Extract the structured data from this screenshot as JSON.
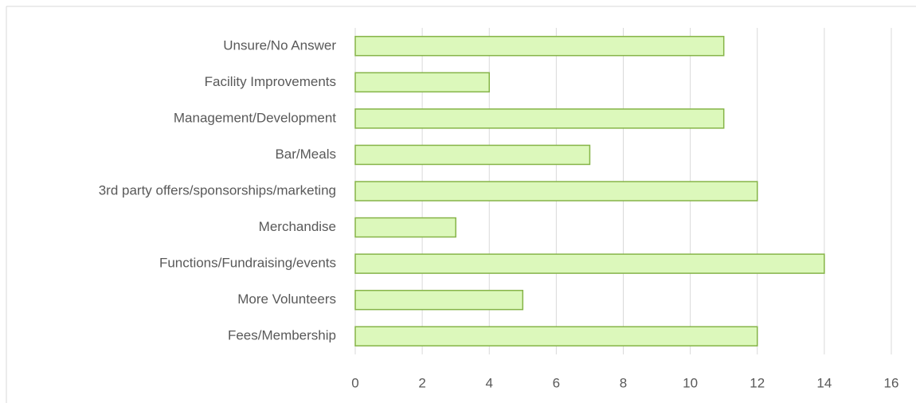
{
  "chart_data": {
    "type": "bar",
    "orientation": "horizontal",
    "categories": [
      "Unsure/No Answer",
      "Facility Improvements",
      "Management/Development",
      "Bar/Meals",
      "3rd party offers/sponsorships/marketing",
      "Merchandise",
      "Functions/Fundraising/events",
      "More Volunteers",
      "Fees/Membership"
    ],
    "values": [
      11,
      4,
      11,
      7,
      12,
      3,
      14,
      5,
      12
    ],
    "color": "#dcf8bb",
    "xlim": [
      0,
      16
    ],
    "xticks": [
      0,
      2,
      4,
      6,
      8,
      10,
      12,
      14,
      16
    ],
    "grid": true
  }
}
